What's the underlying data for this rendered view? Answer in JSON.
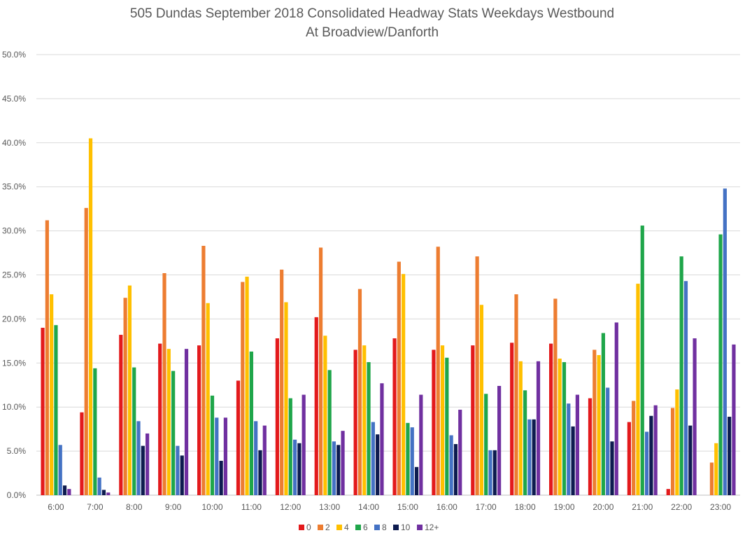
{
  "chart_data": {
    "type": "bar",
    "title": "505 Dundas   September 2018  Consolidated Headway Stats Weekdays Westbound",
    "subtitle": "At Broadview/Danforth",
    "xlabel": "",
    "ylabel": "",
    "ylim": [
      0,
      50
    ],
    "y_ticks": [
      "0.0%",
      "5.0%",
      "10.0%",
      "15.0%",
      "20.0%",
      "25.0%",
      "30.0%",
      "35.0%",
      "40.0%",
      "45.0%",
      "50.0%"
    ],
    "grid": true,
    "legend_position": "bottom",
    "categories": [
      "6:00",
      "7:00",
      "8:00",
      "9:00",
      "10:00",
      "11:00",
      "12:00",
      "13:00",
      "14:00",
      "15:00",
      "16:00",
      "17:00",
      "18:00",
      "19:00",
      "20:00",
      "21:00",
      "22:00",
      "23:00"
    ],
    "series": [
      {
        "name": "0",
        "color": "#e31a1c",
        "values": [
          19.0,
          9.4,
          18.2,
          17.2,
          17.0,
          13.0,
          17.8,
          20.2,
          16.5,
          17.8,
          16.5,
          17.0,
          17.3,
          17.2,
          11.0,
          8.3,
          0.7,
          0.0
        ]
      },
      {
        "name": "2",
        "color": "#ed7d31",
        "values": [
          31.2,
          32.6,
          22.4,
          25.2,
          28.3,
          24.2,
          25.6,
          28.1,
          23.4,
          26.5,
          28.2,
          27.1,
          22.8,
          22.3,
          16.5,
          10.7,
          9.9,
          3.7
        ]
      },
      {
        "name": "4",
        "color": "#ffc000",
        "values": [
          22.8,
          40.5,
          23.8,
          16.6,
          21.8,
          24.8,
          21.9,
          18.1,
          17.0,
          25.1,
          17.0,
          21.6,
          15.2,
          15.5,
          15.9,
          24.0,
          12.0,
          5.9
        ]
      },
      {
        "name": "6",
        "color": "#1fa64a",
        "values": [
          19.3,
          14.4,
          14.5,
          14.1,
          11.3,
          16.3,
          11.0,
          14.2,
          15.1,
          8.2,
          15.6,
          11.5,
          11.9,
          15.1,
          18.4,
          30.6,
          27.1,
          29.6
        ]
      },
      {
        "name": "8",
        "color": "#4472c4",
        "values": [
          5.7,
          2.0,
          8.4,
          5.6,
          8.8,
          8.4,
          6.3,
          6.1,
          8.3,
          7.7,
          6.8,
          5.1,
          8.6,
          10.4,
          12.2,
          7.2,
          24.3,
          34.8
        ]
      },
      {
        "name": "10",
        "color": "#0d1b4f",
        "values": [
          1.1,
          0.6,
          5.6,
          4.5,
          3.9,
          5.1,
          5.9,
          5.7,
          6.9,
          3.2,
          5.8,
          5.1,
          8.6,
          7.8,
          6.1,
          9.0,
          7.9,
          8.9
        ]
      },
      {
        "name": "12+",
        "color": "#7030a0",
        "values": [
          0.7,
          0.3,
          7.0,
          16.6,
          8.8,
          7.9,
          11.4,
          7.3,
          12.7,
          11.4,
          9.7,
          12.4,
          15.2,
          11.4,
          19.6,
          10.2,
          17.8,
          17.1
        ]
      }
    ]
  }
}
